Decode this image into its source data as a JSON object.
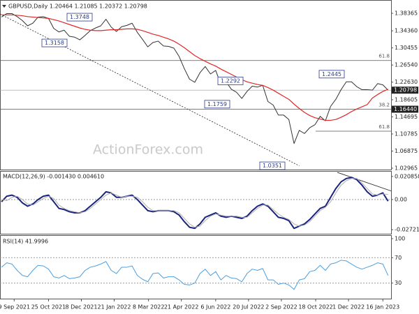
{
  "chart_data": {
    "type": "line",
    "title": "GBPUSD,Daily 1.20464 1.21085 1.20372 1.20798",
    "watermark": "ActionForex.com",
    "x": [
      "2021-08-23",
      "2021-08-30",
      "2021-09-06",
      "2021-09-13",
      "2021-09-20",
      "2021-09-27",
      "2021-10-04",
      "2021-10-11",
      "2021-10-18",
      "2021-10-25",
      "2021-11-01",
      "2021-11-08",
      "2021-11-15",
      "2021-11-22",
      "2021-11-29",
      "2021-12-06",
      "2021-12-13",
      "2021-12-20",
      "2021-12-27",
      "2022-01-03",
      "2022-01-10",
      "2022-01-17",
      "2022-01-24",
      "2022-01-31",
      "2022-02-07",
      "2022-02-14",
      "2022-02-21",
      "2022-02-28",
      "2022-03-07",
      "2022-03-14",
      "2022-03-21",
      "2022-03-28",
      "2022-04-04",
      "2022-04-11",
      "2022-04-18",
      "2022-04-25",
      "2022-05-02",
      "2022-05-09",
      "2022-05-16",
      "2022-05-23",
      "2022-05-30",
      "2022-06-06",
      "2022-06-13",
      "2022-06-20",
      "2022-06-27",
      "2022-07-04",
      "2022-07-11",
      "2022-07-18",
      "2022-07-25",
      "2022-08-01",
      "2022-08-08",
      "2022-08-15",
      "2022-08-22",
      "2022-08-29",
      "2022-09-05",
      "2022-09-12",
      "2022-09-19",
      "2022-09-26",
      "2022-10-03",
      "2022-10-10",
      "2022-10-17",
      "2022-10-24",
      "2022-10-31",
      "2022-11-07",
      "2022-11-14",
      "2022-11-21",
      "2022-11-28",
      "2022-12-05",
      "2022-12-12",
      "2022-12-19",
      "2022-12-26",
      "2023-01-02",
      "2023-01-09",
      "2023-01-16",
      "2023-01-23"
    ],
    "xlim": [
      "2021-08-21",
      "2023-01-27"
    ],
    "xticks": [
      {
        "value": "2021-09-09",
        "label": "9 Sep 2021"
      },
      {
        "value": "2021-10-25",
        "label": "25 Oct 2021"
      },
      {
        "value": "2021-12-08",
        "label": "8 Dec 2021"
      },
      {
        "value": "2022-01-21",
        "label": "21 Jan 2022"
      },
      {
        "value": "2022-03-08",
        "label": "8 Mar 2022"
      },
      {
        "value": "2022-04-21",
        "label": "21 Apr 2022"
      },
      {
        "value": "2022-06-06",
        "label": "6 Jun 2022"
      },
      {
        "value": "2022-07-20",
        "label": "20 Jul 2022"
      },
      {
        "value": "2022-09-02",
        "label": "2 Sep 2022"
      },
      {
        "value": "2022-10-18",
        "label": "18 Oct 2022"
      },
      {
        "value": "2022-12-01",
        "label": "1 Dec 2022"
      },
      {
        "value": "2023-01-16",
        "label": "16 Jan 2023"
      }
    ],
    "ylim": [
      1.0265,
      1.414
    ],
    "yticks": [
      1.38365,
      {
        "value": 1.3436,
        "label": "1.34360"
      },
      1.30455,
      {
        "value": 1.2654,
        "label": "1.26540"
      },
      {
        "value": 1.2263,
        "label": "1.22630"
      },
      1.18605,
      1.14695,
      1.10785,
      1.06875,
      1.02965
    ],
    "series": [
      {
        "name": "GBPUSD",
        "color": "#333333",
        "values": [
          1.375,
          1.383,
          1.383,
          1.376,
          1.367,
          1.355,
          1.361,
          1.375,
          1.376,
          1.372,
          1.349,
          1.341,
          1.345,
          1.331,
          1.329,
          1.323,
          1.333,
          1.344,
          1.35,
          1.355,
          1.37,
          1.352,
          1.342,
          1.353,
          1.356,
          1.361,
          1.34,
          1.324,
          1.307,
          1.317,
          1.32,
          1.309,
          1.308,
          1.304,
          1.285,
          1.257,
          1.233,
          1.226,
          1.248,
          1.262,
          1.245,
          1.253,
          1.221,
          1.227,
          1.21,
          1.203,
          1.189,
          1.205,
          1.217,
          1.215,
          1.219,
          1.182,
          1.174,
          1.151,
          1.151,
          1.141,
          1.086,
          1.116,
          1.109,
          1.122,
          1.129,
          1.148,
          1.138,
          1.171,
          1.187,
          1.209,
          1.227,
          1.227,
          1.216,
          1.209,
          1.209,
          1.208,
          1.223,
          1.22,
          1.208
        ]
      },
      {
        "name": "MA",
        "color": "#e02828",
        "values": [
          1.38,
          1.38,
          1.38,
          1.379,
          1.378,
          1.376,
          1.375,
          1.374,
          1.373,
          1.372,
          1.369,
          1.366,
          1.362,
          1.358,
          1.354,
          1.35,
          1.347,
          1.345,
          1.344,
          1.344,
          1.345,
          1.346,
          1.346,
          1.347,
          1.348,
          1.348,
          1.347,
          1.344,
          1.34,
          1.336,
          1.333,
          1.329,
          1.325,
          1.32,
          1.313,
          1.305,
          1.296,
          1.287,
          1.28,
          1.274,
          1.268,
          1.263,
          1.256,
          1.25,
          1.244,
          1.238,
          1.232,
          1.227,
          1.224,
          1.221,
          1.219,
          1.214,
          1.208,
          1.201,
          1.194,
          1.187,
          1.176,
          1.166,
          1.157,
          1.15,
          1.145,
          1.142,
          1.139,
          1.139,
          1.141,
          1.146,
          1.152,
          1.159,
          1.165,
          1.17,
          1.175,
          1.19,
          1.198,
          1.205,
          1.21
        ]
      }
    ],
    "current_price": 1.20798,
    "price_labels": [
      1.20798,
      {
        "value": 1.1644,
        "label": "1.16440"
      }
    ],
    "level_labels": [
      1.3748,
      1.3158,
      1.2292,
      1.1759,
      1.2445,
      1.0351
    ],
    "fib_levels": [
      {
        "label": "61.8",
        "value": 1.2757
      },
      {
        "label": "38.2",
        "value": 1.1644
      },
      {
        "label": "61.8",
        "value": 1.1142
      }
    ],
    "trendline": {
      "x": [
        "2021-08-21",
        "2022-09-26"
      ],
      "values": [
        1.382,
        1.0351
      ]
    },
    "panels": [
      {
        "type": "line",
        "title": "MACD(12,26,9) -0.001430 0.004610",
        "ylim": [
          -0.0315,
          0.0258
        ],
        "yticks": [
          0.020858,
          {
            "value": 0,
            "label": "0.00"
          },
          -0.027213
        ],
        "series": [
          {
            "name": "MACD",
            "color": "#1a237e",
            "values": [
              -0.002,
              0.003,
              0.004,
              0.002,
              -0.003,
              -0.006,
              -0.004,
              0.0,
              0.003,
              0.004,
              -0.002,
              -0.008,
              -0.009,
              -0.011,
              -0.012,
              -0.012,
              -0.01,
              -0.006,
              -0.002,
              0.002,
              0.007,
              0.006,
              0.002,
              0.002,
              0.003,
              0.004,
              0.0,
              -0.005,
              -0.01,
              -0.011,
              -0.01,
              -0.01,
              -0.01,
              -0.011,
              -0.014,
              -0.02,
              -0.025,
              -0.026,
              -0.022,
              -0.016,
              -0.014,
              -0.012,
              -0.015,
              -0.016,
              -0.015,
              -0.016,
              -0.017,
              -0.015,
              -0.01,
              -0.006,
              -0.004,
              -0.006,
              -0.011,
              -0.016,
              -0.017,
              -0.019,
              -0.026,
              -0.024,
              -0.022,
              -0.018,
              -0.013,
              -0.008,
              -0.006,
              0.002,
              0.01,
              0.016,
              0.019,
              0.02,
              0.018,
              0.013,
              0.007,
              0.003,
              0.004,
              0.006,
              -0.00143
            ]
          },
          {
            "name": "Signal",
            "color": "#b0b0b0",
            "values": [
              0.0,
              -0.001,
              0.002,
              0.003,
              0.0,
              -0.004,
              -0.005,
              -0.002,
              0.001,
              0.003,
              0.001,
              -0.005,
              -0.008,
              -0.01,
              -0.011,
              -0.012,
              -0.011,
              -0.008,
              -0.004,
              0.0,
              0.004,
              0.006,
              0.004,
              0.002,
              0.003,
              0.003,
              0.002,
              -0.002,
              -0.007,
              -0.01,
              -0.01,
              -0.01,
              -0.01,
              -0.01,
              -0.012,
              -0.017,
              -0.022,
              -0.025,
              -0.024,
              -0.019,
              -0.015,
              -0.013,
              -0.014,
              -0.015,
              -0.015,
              -0.015,
              -0.016,
              -0.016,
              -0.012,
              -0.008,
              -0.005,
              -0.005,
              -0.009,
              -0.013,
              -0.016,
              -0.018,
              -0.022,
              -0.024,
              -0.023,
              -0.02,
              -0.015,
              -0.01,
              -0.007,
              -0.002,
              0.006,
              0.013,
              0.017,
              0.019,
              0.019,
              0.015,
              0.01,
              0.005,
              0.004,
              0.005,
              0.00461
            ]
          }
        ],
        "trendline": {
          "x": [
            "2022-11-16",
            "2023-01-27"
          ],
          "values": [
            0.0245,
            0.0078
          ]
        }
      },
      {
        "type": "line",
        "title": "RSI(14) 41.9996",
        "ylim": [
          4.4,
          104.4
        ],
        "yticks": [
          100,
          70,
          30
        ],
        "levels": [
          70,
          30
        ],
        "series": [
          {
            "name": "RSI",
            "color": "#4a9fe0",
            "values": [
              55,
              62,
              60,
              50,
              42,
              40,
              50,
              58,
              57,
              52,
              40,
              38,
              42,
              37,
              38,
              40,
              50,
              55,
              57,
              60,
              64,
              50,
              45,
              55,
              55,
              57,
              42,
              36,
              32,
              45,
              46,
              38,
              40,
              40,
              35,
              28,
              27,
              30,
              45,
              52,
              42,
              48,
              35,
              42,
              38,
              37,
              32,
              45,
              52,
              50,
              53,
              35,
              35,
              28,
              30,
              27,
              20,
              35,
              37,
              48,
              50,
              58,
              50,
              60,
              62,
              66,
              65,
              60,
              55,
              52,
              55,
              58,
              62,
              60,
              41.9996
            ]
          }
        ]
      }
    ]
  }
}
